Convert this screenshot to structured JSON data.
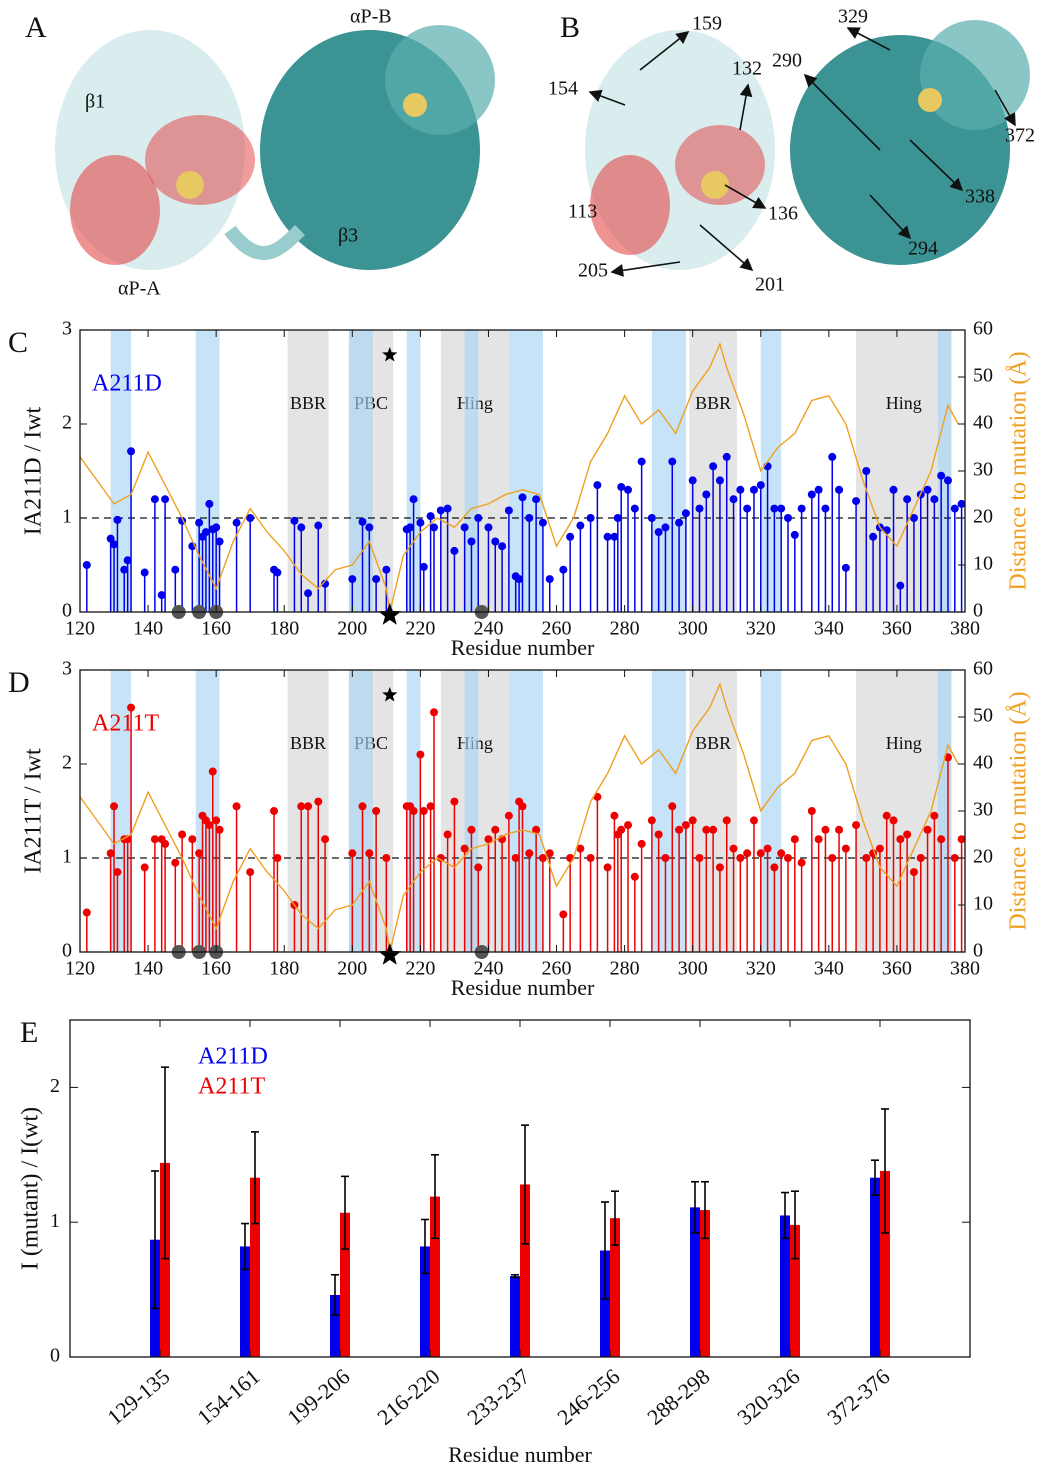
{
  "panel_A": {
    "label": "A",
    "annotations": [
      "β1",
      "αP-B",
      "αP-A",
      "β3"
    ]
  },
  "panel_B": {
    "label": "B",
    "residues": [
      "159",
      "154",
      "132",
      "290",
      "329",
      "372",
      "338",
      "294",
      "136",
      "113",
      "205",
      "201"
    ]
  },
  "chart_data": [
    {
      "type": "stem",
      "panel_label": "C",
      "x_label": "Residue number",
      "y_label": "IA211D / Iwt",
      "y2_label": "Distance to mutation (Å)",
      "xlim": [
        120,
        380
      ],
      "xticks": [
        120,
        140,
        160,
        180,
        200,
        220,
        240,
        260,
        280,
        300,
        320,
        340,
        360,
        380
      ],
      "ylim": [
        0,
        3
      ],
      "yticks": [
        0,
        1,
        2,
        3
      ],
      "y2lim": [
        0,
        60
      ],
      "y2ticks": [
        0,
        10,
        20,
        30,
        40,
        50,
        60
      ],
      "hline": 1,
      "mutation": 211,
      "sites": [
        149,
        155,
        160,
        238
      ],
      "highlights": [
        [
          129,
          135
        ],
        [
          154,
          161
        ],
        [
          199,
          206
        ],
        [
          216,
          220
        ],
        [
          233,
          237
        ],
        [
          246,
          256
        ],
        [
          288,
          298
        ],
        [
          320,
          326
        ],
        [
          372,
          376
        ]
      ],
      "regions": [
        {
          "range": [
            181,
            193
          ],
          "label": "BBR"
        },
        {
          "range": [
            199,
            212
          ],
          "label": "PBC"
        },
        {
          "range": [
            226,
            246
          ],
          "label": "Hing"
        },
        {
          "range": [
            299,
            313
          ],
          "label": "BBR"
        },
        {
          "range": [
            348,
            376
          ],
          "label": "Hing"
        }
      ],
      "series": [
        {
          "name": "A211D",
          "color": "#0000ee",
          "x": [
            122,
            129,
            130,
            131,
            133,
            134,
            135,
            139,
            142,
            144,
            145,
            148,
            150,
            153,
            155,
            156,
            157,
            158,
            159,
            160,
            161,
            166,
            170,
            177,
            178,
            183,
            185,
            187,
            190,
            192,
            200,
            203,
            205,
            207,
            210,
            216,
            217,
            218,
            220,
            221,
            223,
            224,
            226,
            228,
            230,
            233,
            235,
            237,
            240,
            242,
            244,
            246,
            248,
            249,
            250,
            252,
            254,
            256,
            258,
            262,
            264,
            267,
            270,
            272,
            275,
            277,
            278,
            279,
            281,
            283,
            285,
            288,
            290,
            292,
            294,
            296,
            298,
            300,
            302,
            304,
            306,
            308,
            310,
            312,
            314,
            316,
            318,
            320,
            322,
            324,
            326,
            328,
            330,
            332,
            335,
            337,
            339,
            341,
            343,
            345,
            348,
            351,
            353,
            355,
            357,
            359,
            361,
            363,
            365,
            367,
            369,
            371,
            373,
            375,
            377,
            379
          ],
          "values": [
            0.5,
            0.78,
            0.72,
            0.98,
            0.45,
            0.55,
            1.71,
            0.42,
            1.2,
            0.18,
            1.2,
            0.45,
            0.97,
            0.7,
            0.95,
            0.8,
            0.85,
            1.15,
            0.88,
            0.9,
            0.75,
            0.95,
            1.0,
            0.45,
            0.42,
            0.97,
            0.9,
            0.2,
            0.92,
            0.3,
            0.35,
            0.96,
            0.9,
            0.35,
            0.45,
            0.88,
            0.9,
            1.2,
            0.95,
            0.48,
            1.02,
            0.9,
            1.08,
            1.1,
            0.65,
            0.9,
            0.75,
            1.0,
            0.9,
            0.75,
            0.7,
            1.08,
            0.38,
            0.35,
            1.22,
            1.0,
            1.2,
            0.95,
            0.35,
            0.45,
            0.8,
            0.92,
            1.0,
            1.35,
            0.8,
            0.8,
            1.0,
            1.33,
            1.3,
            1.1,
            1.6,
            1.0,
            0.85,
            0.9,
            1.6,
            0.95,
            1.05,
            1.4,
            1.1,
            1.25,
            1.55,
            1.4,
            1.65,
            1.2,
            1.3,
            1.1,
            1.3,
            1.35,
            1.55,
            1.1,
            1.1,
            1.0,
            0.82,
            1.1,
            1.25,
            1.3,
            1.1,
            1.65,
            1.3,
            0.47,
            1.18,
            1.5,
            0.8,
            0.9,
            0.87,
            1.3,
            0.28,
            1.2,
            1.0,
            1.25,
            1.3,
            1.2,
            1.45,
            1.4,
            1.1,
            1.15
          ]
        },
        {
          "type": "line",
          "axis": "y2",
          "color": "#f0a020",
          "x": [
            120,
            125,
            130,
            135,
            140,
            145,
            150,
            155,
            160,
            165,
            170,
            175,
            180,
            185,
            190,
            195,
            200,
            205,
            210,
            211,
            215,
            220,
            225,
            230,
            235,
            240,
            245,
            250,
            255,
            260,
            265,
            270,
            275,
            280,
            285,
            290,
            295,
            300,
            305,
            308,
            310,
            315,
            320,
            325,
            330,
            335,
            340,
            345,
            350,
            355,
            360,
            365,
            370,
            375,
            378
          ],
          "values": [
            33,
            28,
            23,
            25,
            34,
            27,
            20,
            12,
            5,
            15,
            22,
            17,
            13,
            8,
            5,
            9,
            10,
            15,
            5,
            0,
            12,
            17,
            20,
            18,
            22,
            23,
            25,
            26,
            25,
            14,
            20,
            32,
            38,
            46,
            40,
            43,
            38,
            47,
            52,
            57,
            52,
            42,
            30,
            35,
            38,
            45,
            46,
            40,
            28,
            18,
            14,
            22,
            30,
            44,
            40
          ]
        }
      ]
    },
    {
      "type": "stem",
      "panel_label": "D",
      "x_label": "Residue number",
      "y_label": "IA211T / Iwt",
      "y2_label": "Distance to mutation (Å)",
      "xlim": [
        120,
        380
      ],
      "xticks": [
        120,
        140,
        160,
        180,
        200,
        220,
        240,
        260,
        280,
        300,
        320,
        340,
        360,
        380
      ],
      "ylim": [
        0,
        3
      ],
      "yticks": [
        0,
        1,
        2,
        3
      ],
      "y2lim": [
        0,
        60
      ],
      "y2ticks": [
        0,
        10,
        20,
        30,
        40,
        50,
        60
      ],
      "hline": 1,
      "mutation": 211,
      "sites": [
        149,
        155,
        160,
        238
      ],
      "highlights": [
        [
          129,
          135
        ],
        [
          154,
          161
        ],
        [
          199,
          206
        ],
        [
          216,
          220
        ],
        [
          233,
          237
        ],
        [
          246,
          256
        ],
        [
          288,
          298
        ],
        [
          320,
          326
        ],
        [
          372,
          376
        ]
      ],
      "regions": [
        {
          "range": [
            181,
            193
          ],
          "label": "BBR"
        },
        {
          "range": [
            199,
            212
          ],
          "label": "PBC"
        },
        {
          "range": [
            226,
            246
          ],
          "label": "Hing"
        },
        {
          "range": [
            299,
            313
          ],
          "label": "BBR"
        },
        {
          "range": [
            348,
            376
          ],
          "label": "Hing"
        }
      ],
      "series": [
        {
          "name": "A211T",
          "color": "#ee0000",
          "x": [
            122,
            129,
            130,
            131,
            133,
            134,
            135,
            139,
            142,
            144,
            145,
            148,
            150,
            153,
            155,
            156,
            157,
            158,
            159,
            160,
            161,
            166,
            170,
            177,
            178,
            183,
            185,
            187,
            190,
            192,
            200,
            203,
            205,
            207,
            210,
            216,
            217,
            218,
            220,
            221,
            223,
            224,
            226,
            228,
            230,
            233,
            235,
            237,
            240,
            242,
            244,
            246,
            248,
            249,
            250,
            252,
            254,
            256,
            258,
            262,
            264,
            267,
            270,
            272,
            275,
            277,
            278,
            279,
            281,
            283,
            285,
            288,
            290,
            292,
            294,
            296,
            298,
            300,
            302,
            304,
            306,
            308,
            310,
            312,
            314,
            316,
            318,
            320,
            322,
            324,
            326,
            328,
            330,
            332,
            335,
            337,
            339,
            341,
            343,
            345,
            348,
            351,
            353,
            355,
            357,
            359,
            361,
            363,
            365,
            367,
            369,
            371,
            373,
            375,
            377,
            379
          ],
          "values": [
            0.42,
            1.05,
            1.55,
            0.85,
            1.2,
            1.2,
            2.6,
            0.9,
            1.2,
            1.2,
            1.15,
            0.95,
            1.25,
            1.2,
            1.05,
            1.45,
            1.4,
            1.35,
            1.92,
            1.4,
            1.3,
            1.55,
            0.85,
            1.5,
            1.0,
            0.5,
            1.55,
            1.55,
            1.6,
            1.2,
            1.05,
            1.55,
            1.05,
            1.5,
            1.0,
            1.55,
            1.55,
            1.5,
            2.1,
            1.5,
            1.55,
            2.55,
            1.0,
            1.25,
            1.6,
            1.1,
            1.3,
            0.9,
            1.2,
            1.3,
            1.2,
            1.45,
            1.0,
            1.6,
            1.55,
            1.05,
            1.3,
            1.0,
            1.05,
            0.4,
            1.0,
            1.1,
            1.0,
            1.65,
            0.9,
            1.45,
            1.25,
            1.3,
            1.35,
            0.8,
            1.15,
            1.4,
            1.25,
            1.0,
            1.55,
            1.3,
            1.35,
            1.4,
            1.0,
            1.3,
            1.3,
            0.9,
            1.4,
            1.1,
            1.0,
            1.05,
            1.4,
            1.05,
            1.1,
            0.9,
            1.05,
            1.0,
            1.2,
            0.95,
            1.5,
            1.2,
            1.3,
            1.0,
            1.3,
            1.1,
            1.35,
            1.0,
            1.05,
            1.1,
            1.45,
            1.4,
            1.2,
            1.25,
            0.85,
            1.0,
            1.3,
            1.45,
            1.2,
            2.07,
            1.0,
            1.2
          ]
        },
        {
          "type": "line",
          "axis": "y2",
          "color": "#f0a020",
          "x": [
            120,
            125,
            130,
            135,
            140,
            145,
            150,
            155,
            160,
            165,
            170,
            175,
            180,
            185,
            190,
            195,
            200,
            205,
            210,
            211,
            215,
            220,
            225,
            230,
            235,
            240,
            245,
            250,
            255,
            260,
            265,
            270,
            275,
            280,
            285,
            290,
            295,
            300,
            305,
            308,
            310,
            315,
            320,
            325,
            330,
            335,
            340,
            345,
            350,
            355,
            360,
            365,
            370,
            375,
            378
          ],
          "values": [
            33,
            28,
            23,
            25,
            34,
            27,
            20,
            12,
            5,
            15,
            22,
            17,
            13,
            8,
            5,
            9,
            10,
            15,
            5,
            0,
            12,
            17,
            20,
            18,
            22,
            23,
            25,
            26,
            25,
            14,
            20,
            32,
            38,
            46,
            40,
            43,
            38,
            47,
            52,
            57,
            52,
            42,
            30,
            35,
            38,
            45,
            46,
            40,
            28,
            18,
            14,
            22,
            30,
            44,
            40
          ]
        }
      ]
    },
    {
      "type": "bar",
      "panel_label": "E",
      "x_label": "Residue number",
      "y_label": "I (mutant) / I(wt)",
      "categories": [
        "129-135",
        "154-161",
        "199-206",
        "216-220",
        "233-237",
        "246-256",
        "288-298",
        "320-326",
        "372-376"
      ],
      "ylim": [
        0,
        2.5
      ],
      "yticks": [
        0,
        1,
        2
      ],
      "series": [
        {
          "name": "A211D",
          "color": "#0000ee",
          "values": [
            0.87,
            0.82,
            0.46,
            0.82,
            0.6,
            0.79,
            1.11,
            1.05,
            1.33
          ],
          "errors": [
            0.51,
            0.17,
            0.15,
            0.2,
            0.01,
            0.36,
            0.19,
            0.17,
            0.13
          ]
        },
        {
          "name": "A211T",
          "color": "#ee0000",
          "values": [
            1.44,
            1.33,
            1.07,
            1.19,
            1.28,
            1.03,
            1.09,
            0.98,
            1.38
          ],
          "errors": [
            0.71,
            0.34,
            0.27,
            0.31,
            0.44,
            0.2,
            0.21,
            0.25,
            0.46
          ]
        }
      ]
    }
  ]
}
